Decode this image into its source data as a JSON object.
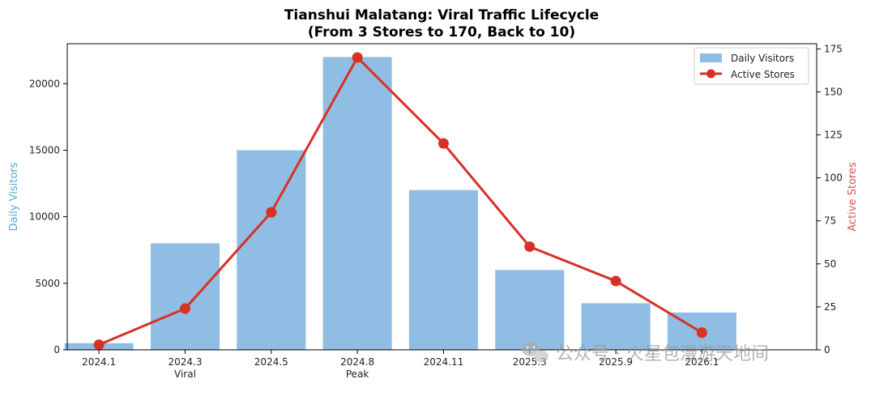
{
  "chart_data": {
    "type": "bar",
    "title_line1": "Tianshui Malatang: Viral Traffic Lifecycle",
    "title_line2": "(From 3 Stores to 170, Back to 10)",
    "categories": [
      "2024.1",
      "2024.3",
      "2024.5",
      "2024.8",
      "2024.11",
      "2025.3",
      "2025.9",
      "2026.1"
    ],
    "sublabels": [
      "",
      "Viral",
      "",
      "Peak",
      "",
      "",
      "",
      ""
    ],
    "series": [
      {
        "name": "Daily Visitors",
        "type": "bar",
        "axis": "left",
        "color": "#90bde3",
        "values": [
          500,
          8000,
          15000,
          22000,
          12000,
          6000,
          3500,
          2800
        ]
      },
      {
        "name": "Active Stores",
        "type": "line",
        "axis": "right",
        "color": "#d93025",
        "values": [
          3,
          24,
          80,
          170,
          120,
          60,
          40,
          10
        ]
      }
    ],
    "ylabel_left": "Daily Visitors",
    "ylabel_right": "Active Stores",
    "ylabel_left_color": "#5aa6d8",
    "ylabel_right_color": "#d9534f",
    "ylim_left": [
      0,
      23000
    ],
    "ylim_right": [
      0,
      178
    ],
    "yticks_left": [
      0,
      5000,
      10000,
      15000,
      20000
    ],
    "yticks_right": [
      0,
      25,
      50,
      75,
      100,
      125,
      150,
      175
    ],
    "legend_position": "upper right",
    "grid": false
  },
  "watermark": {
    "icon": "wechat-icon",
    "text": "公众号 · 火星包漫游天地间"
  }
}
